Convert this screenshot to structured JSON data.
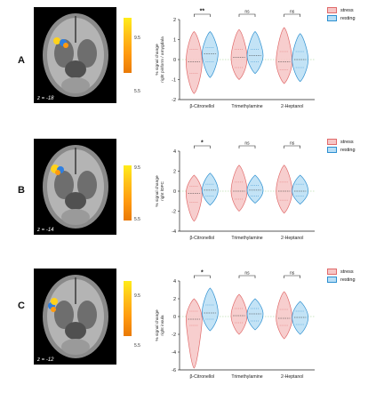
{
  "panels": [
    {
      "label": "A",
      "slice": "z = -18",
      "colorbar": {
        "max": "9.5",
        "min": "5.5"
      },
      "chart_data": {
        "type": "violin",
        "ylabel": "% signal change\nright piriform / amygdala",
        "ylim": [
          -2,
          2
        ],
        "yticks": [
          -2,
          -1,
          0,
          1,
          2
        ],
        "categories": [
          "β-Citronellol",
          "Trimethylamine",
          "2-Heptanol"
        ],
        "series": [
          {
            "name": "stress",
            "color": "#f0a4a4",
            "medians": [
              -0.1,
              0.1,
              -0.1
            ],
            "q1": [
              -0.7,
              -0.4,
              -0.5
            ],
            "q3": [
              0.5,
              0.5,
              0.4
            ],
            "min": [
              -1.7,
              -1.0,
              -1.2
            ],
            "max": [
              1.4,
              1.5,
              1.6
            ]
          },
          {
            "name": "resting",
            "color": "#7cc0ea",
            "medians": [
              0.3,
              0.2,
              0.0
            ],
            "q1": [
              -0.1,
              -0.1,
              -0.4
            ],
            "q3": [
              0.6,
              0.5,
              0.4
            ],
            "min": [
              -0.9,
              -0.7,
              -1.1
            ],
            "max": [
              1.4,
              1.4,
              1.3
            ]
          }
        ],
        "significance": [
          "**",
          "ns",
          "ns"
        ]
      }
    },
    {
      "label": "B",
      "slice": "z = -14",
      "colorbar": {
        "max": "9.5",
        "min": "5.5"
      },
      "chart_data": {
        "type": "violin",
        "ylabel": "% signal change\nright lOFC",
        "ylim": [
          -4,
          4
        ],
        "yticks": [
          -4,
          -2,
          0,
          2,
          4
        ],
        "categories": [
          "β-Citronellol",
          "Trimethylamine",
          "2-Heptanol"
        ],
        "series": [
          {
            "name": "stress",
            "color": "#f0a4a4",
            "medians": [
              -0.2,
              0.0,
              0.0
            ],
            "q1": [
              -1.1,
              -0.8,
              -0.9
            ],
            "q3": [
              0.5,
              0.9,
              0.9
            ],
            "min": [
              -3.0,
              -2.0,
              -2.2
            ],
            "max": [
              1.6,
              2.6,
              2.6
            ]
          },
          {
            "name": "resting",
            "color": "#7cc0ea",
            "medians": [
              0.1,
              0.1,
              0.0
            ],
            "q1": [
              -0.5,
              -0.5,
              -0.5
            ],
            "q3": [
              0.7,
              0.6,
              0.7
            ],
            "min": [
              -1.4,
              -1.2,
              -1.3
            ],
            "max": [
              1.8,
              1.6,
              1.6
            ]
          }
        ],
        "significance": [
          "*",
          "ns",
          "ns"
        ]
      }
    },
    {
      "label": "C",
      "slice": "z = -12",
      "colorbar": {
        "max": "9.5",
        "min": "5.5"
      },
      "chart_data": {
        "type": "violin",
        "ylabel": "% signal change\nright insula",
        "ylim": [
          -6,
          4
        ],
        "yticks": [
          -6,
          -4,
          -2,
          0,
          2,
          4
        ],
        "categories": [
          "β-Citronellol",
          "Trimethylamine",
          "2-Heptanol"
        ],
        "series": [
          {
            "name": "stress",
            "color": "#f0a4a4",
            "medians": [
              -0.3,
              0.1,
              -0.2
            ],
            "q1": [
              -1.0,
              -0.7,
              -1.0
            ],
            "q3": [
              0.6,
              0.9,
              0.8
            ],
            "min": [
              -5.8,
              -2.0,
              -2.5
            ],
            "max": [
              2.0,
              2.5,
              2.8
            ]
          },
          {
            "name": "resting",
            "color": "#7cc0ea",
            "medians": [
              0.4,
              0.3,
              -0.1
            ],
            "q1": [
              -0.3,
              -0.5,
              -0.9
            ],
            "q3": [
              1.3,
              0.9,
              0.6
            ],
            "min": [
              -1.6,
              -1.5,
              -2.0
            ],
            "max": [
              3.2,
              2.0,
              1.7
            ]
          }
        ],
        "significance": [
          "*",
          "ns",
          "ns"
        ]
      }
    }
  ],
  "legend": [
    "stress",
    "resting"
  ],
  "icons": {
    "brain": "brain-slice-image"
  }
}
